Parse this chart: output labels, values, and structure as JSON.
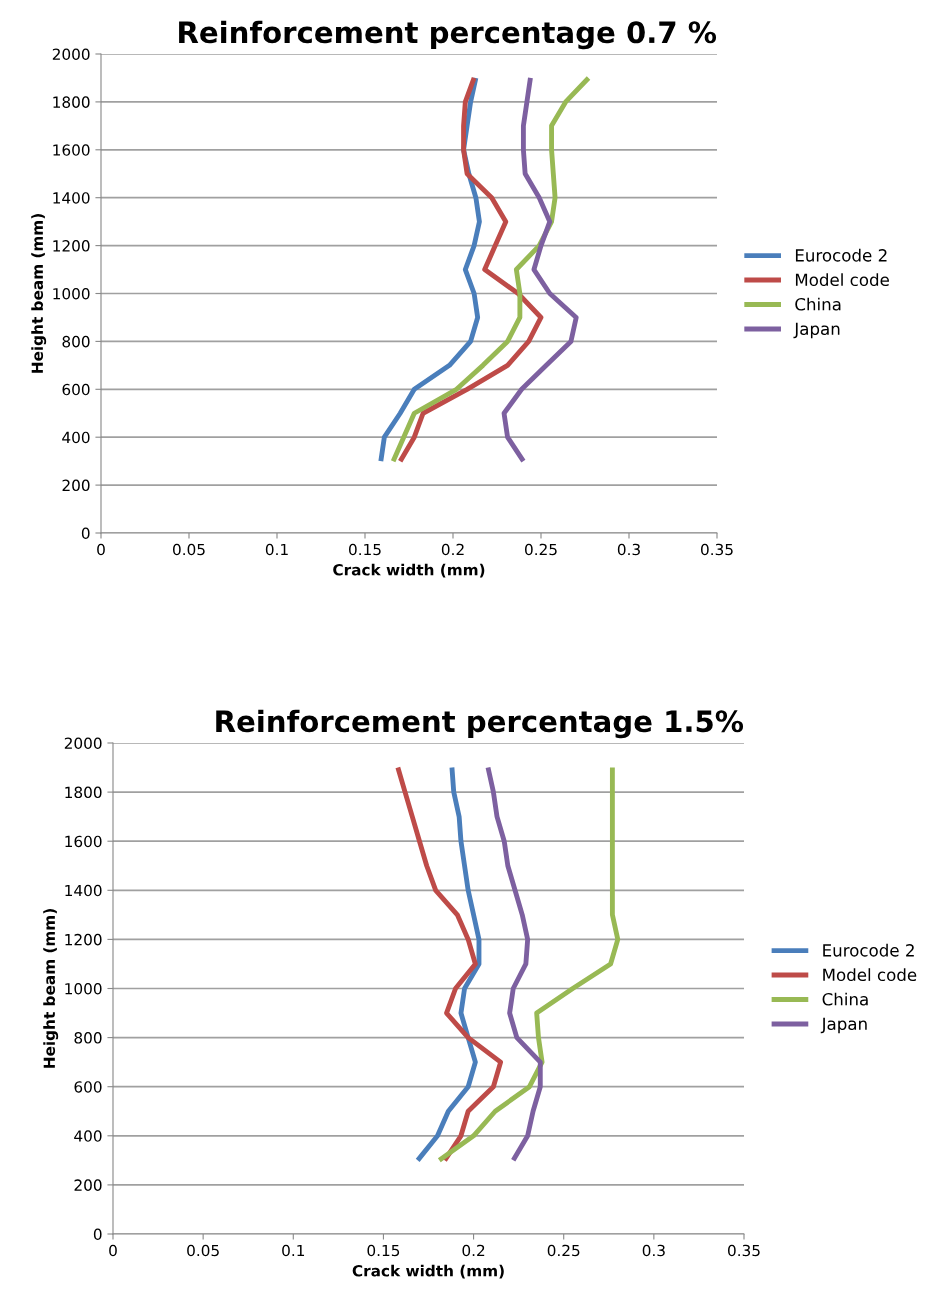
{
  "chart_data": [
    {
      "type": "line",
      "title": "Reinforcement percentage 0.7 %",
      "xlabel": "Crack width (mm)",
      "ylabel": "Height beam (mm)",
      "xlim": [
        0,
        0.35
      ],
      "xticks": [
        0,
        0.05,
        0.1,
        0.15,
        0.2,
        0.25,
        0.3,
        0.35
      ],
      "ylim": [
        0,
        2000
      ],
      "yticks": [
        0,
        200,
        400,
        600,
        800,
        1000,
        1200,
        1400,
        1600,
        1800,
        2000
      ],
      "grid": "y",
      "legend": "right",
      "marker": "none",
      "line_style": "solid",
      "series": [
        {
          "name": "Eurocode 2",
          "color": "#4a7ebb",
          "x": [
            0.159,
            0.161,
            0.17,
            0.178,
            0.198,
            0.21,
            0.214,
            0.212,
            0.207,
            0.212,
            0.215,
            0.213,
            0.209,
            0.206,
            0.208,
            0.21,
            0.213
          ],
          "values": [
            300,
            400,
            500,
            600,
            700,
            800,
            900,
            1000,
            1100,
            1200,
            1300,
            1400,
            1500,
            1600,
            1700,
            1800,
            1900
          ]
        },
        {
          "name": "Model code",
          "color": "#be4b48",
          "x": [
            0.17,
            0.178,
            0.183,
            0.208,
            0.231,
            0.243,
            0.25,
            0.237,
            0.218,
            0.224,
            0.23,
            0.222,
            0.208,
            0.206,
            0.206,
            0.207,
            0.212
          ],
          "values": [
            300,
            400,
            500,
            600,
            700,
            800,
            900,
            1000,
            1100,
            1200,
            1300,
            1400,
            1500,
            1600,
            1700,
            1800,
            1900
          ]
        },
        {
          "name": "China",
          "color": "#98b954",
          "x": [
            0.166,
            0.172,
            0.178,
            0.202,
            0.217,
            0.231,
            0.238,
            0.238,
            0.236,
            0.249,
            0.256,
            0.258,
            0.257,
            0.256,
            0.256,
            0.264,
            0.277
          ],
          "values": [
            300,
            400,
            500,
            600,
            700,
            800,
            900,
            1000,
            1100,
            1200,
            1300,
            1400,
            1500,
            1600,
            1700,
            1800,
            1900
          ]
        },
        {
          "name": "Japan",
          "color": "#7d60a0",
          "x": [
            0.24,
            0.231,
            0.229,
            0.239,
            0.253,
            0.267,
            0.27,
            0.255,
            0.246,
            0.25,
            0.255,
            0.249,
            0.241,
            0.24,
            0.24,
            0.242,
            0.244
          ],
          "values": [
            300,
            400,
            500,
            600,
            700,
            800,
            900,
            1000,
            1100,
            1200,
            1300,
            1400,
            1500,
            1600,
            1700,
            1800,
            1900
          ]
        }
      ]
    },
    {
      "type": "line",
      "title": "Reinforcement percentage 1.5%",
      "xlabel": "Crack width (mm)",
      "ylabel": "Height beam (mm)",
      "xlim": [
        0,
        0.35
      ],
      "xticks": [
        0,
        0.05,
        0.1,
        0.15,
        0.2,
        0.25,
        0.3,
        0.35
      ],
      "ylim": [
        0,
        2000
      ],
      "yticks": [
        0,
        200,
        400,
        600,
        800,
        1000,
        1200,
        1400,
        1600,
        1800,
        2000
      ],
      "grid": "y",
      "legend": "right",
      "marker": "none",
      "line_style": "solid",
      "series": [
        {
          "name": "Eurocode 2",
          "color": "#4a7ebb",
          "x": [
            0.169,
            0.18,
            0.186,
            0.197,
            0.201,
            0.197,
            0.193,
            0.195,
            0.203,
            0.203,
            0.2,
            0.197,
            0.195,
            0.193,
            0.192,
            0.189,
            0.188
          ],
          "values": [
            300,
            400,
            500,
            600,
            700,
            800,
            900,
            1000,
            1100,
            1200,
            1300,
            1400,
            1500,
            1600,
            1700,
            1800,
            1900
          ]
        },
        {
          "name": "Model code",
          "color": "#be4b48",
          "x": [
            0.184,
            0.193,
            0.197,
            0.211,
            0.215,
            0.197,
            0.185,
            0.19,
            0.201,
            0.197,
            0.191,
            0.179,
            0.174,
            0.17,
            0.166,
            0.162,
            0.158
          ],
          "values": [
            300,
            400,
            500,
            600,
            700,
            800,
            900,
            1000,
            1100,
            1200,
            1300,
            1400,
            1500,
            1600,
            1700,
            1800,
            1900
          ]
        },
        {
          "name": "China",
          "color": "#98b954",
          "x": [
            0.181,
            0.2,
            0.212,
            0.231,
            0.238,
            0.236,
            0.235,
            0.255,
            0.276,
            0.28,
            0.277,
            0.277,
            0.277,
            0.277,
            0.277,
            0.277,
            0.277
          ],
          "values": [
            300,
            400,
            500,
            600,
            700,
            800,
            900,
            1000,
            1100,
            1200,
            1300,
            1400,
            1500,
            1600,
            1700,
            1800,
            1900
          ]
        },
        {
          "name": "Japan",
          "color": "#7d60a0",
          "x": [
            0.222,
            0.23,
            0.233,
            0.237,
            0.237,
            0.224,
            0.22,
            0.222,
            0.229,
            0.23,
            0.227,
            0.223,
            0.219,
            0.217,
            0.213,
            0.211,
            0.208
          ],
          "values": [
            300,
            400,
            500,
            600,
            700,
            800,
            900,
            1000,
            1100,
            1200,
            1300,
            1400,
            1500,
            1600,
            1700,
            1800,
            1900
          ]
        }
      ]
    }
  ]
}
